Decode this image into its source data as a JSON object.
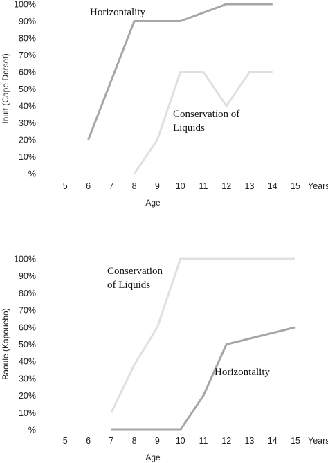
{
  "chart_data": [
    {
      "type": "line",
      "ylabel": "Inuit (Cape Dorset)",
      "xlabel": "Age",
      "x_unit_label": "Years",
      "x_ticks": [
        "5",
        "6",
        "7",
        "8",
        "9",
        "10",
        "11",
        "12",
        "13",
        "14",
        "15"
      ],
      "y_ticks": [
        "%",
        "10%",
        "20%",
        "30%",
        "40%",
        "50%",
        "60%",
        "70%",
        "80%",
        "90%",
        "100%"
      ],
      "xlim": [
        4,
        15.6
      ],
      "ylim": [
        0,
        100
      ],
      "grid": false,
      "legend": "none",
      "series": [
        {
          "name": "Horizontality",
          "color": "#a6a6a6",
          "x": [
            6,
            8,
            9,
            10,
            12,
            13,
            14
          ],
          "y": [
            20,
            90,
            90,
            90,
            100,
            100,
            100
          ]
        },
        {
          "name": "Conservation of Liquids",
          "color": "#e0e0e0",
          "x": [
            8,
            9,
            10,
            11,
            12,
            13,
            14
          ],
          "y": [
            0,
            20,
            60,
            60,
            40,
            60,
            60
          ]
        }
      ],
      "annotations": [
        {
          "text": "Horizontality",
          "series": 0
        },
        {
          "lines": [
            "Conservation of",
            "Liquids"
          ],
          "series": 1
        }
      ]
    },
    {
      "type": "line",
      "ylabel": "Baoule (Kapouebo)",
      "xlabel": "Age",
      "x_unit_label": "Years",
      "x_ticks": [
        "5",
        "6",
        "7",
        "8",
        "9",
        "10",
        "11",
        "12",
        "13",
        "14",
        "15"
      ],
      "y_ticks": [
        "%",
        "10%",
        "20%",
        "30%",
        "40%",
        "50%",
        "60%",
        "70%",
        "80%",
        "90%",
        "100%"
      ],
      "xlim": [
        4,
        15.6
      ],
      "ylim": [
        0,
        100
      ],
      "grid": false,
      "legend": "none",
      "series": [
        {
          "name": "Conservation of Liquids",
          "color": "#e0e0e0",
          "x": [
            7,
            8,
            9,
            10,
            15
          ],
          "y": [
            10,
            38,
            60,
            100,
            100
          ]
        },
        {
          "name": "Horizontality",
          "color": "#a6a6a6",
          "x": [
            7,
            8,
            9,
            10,
            11,
            12,
            15
          ],
          "y": [
            0,
            0,
            0,
            0,
            20,
            50,
            60
          ]
        }
      ],
      "annotations": [
        {
          "lines": [
            "Conservation",
            "of Liquids"
          ],
          "series": 0
        },
        {
          "text": "Horizontality",
          "series": 1
        }
      ]
    }
  ]
}
